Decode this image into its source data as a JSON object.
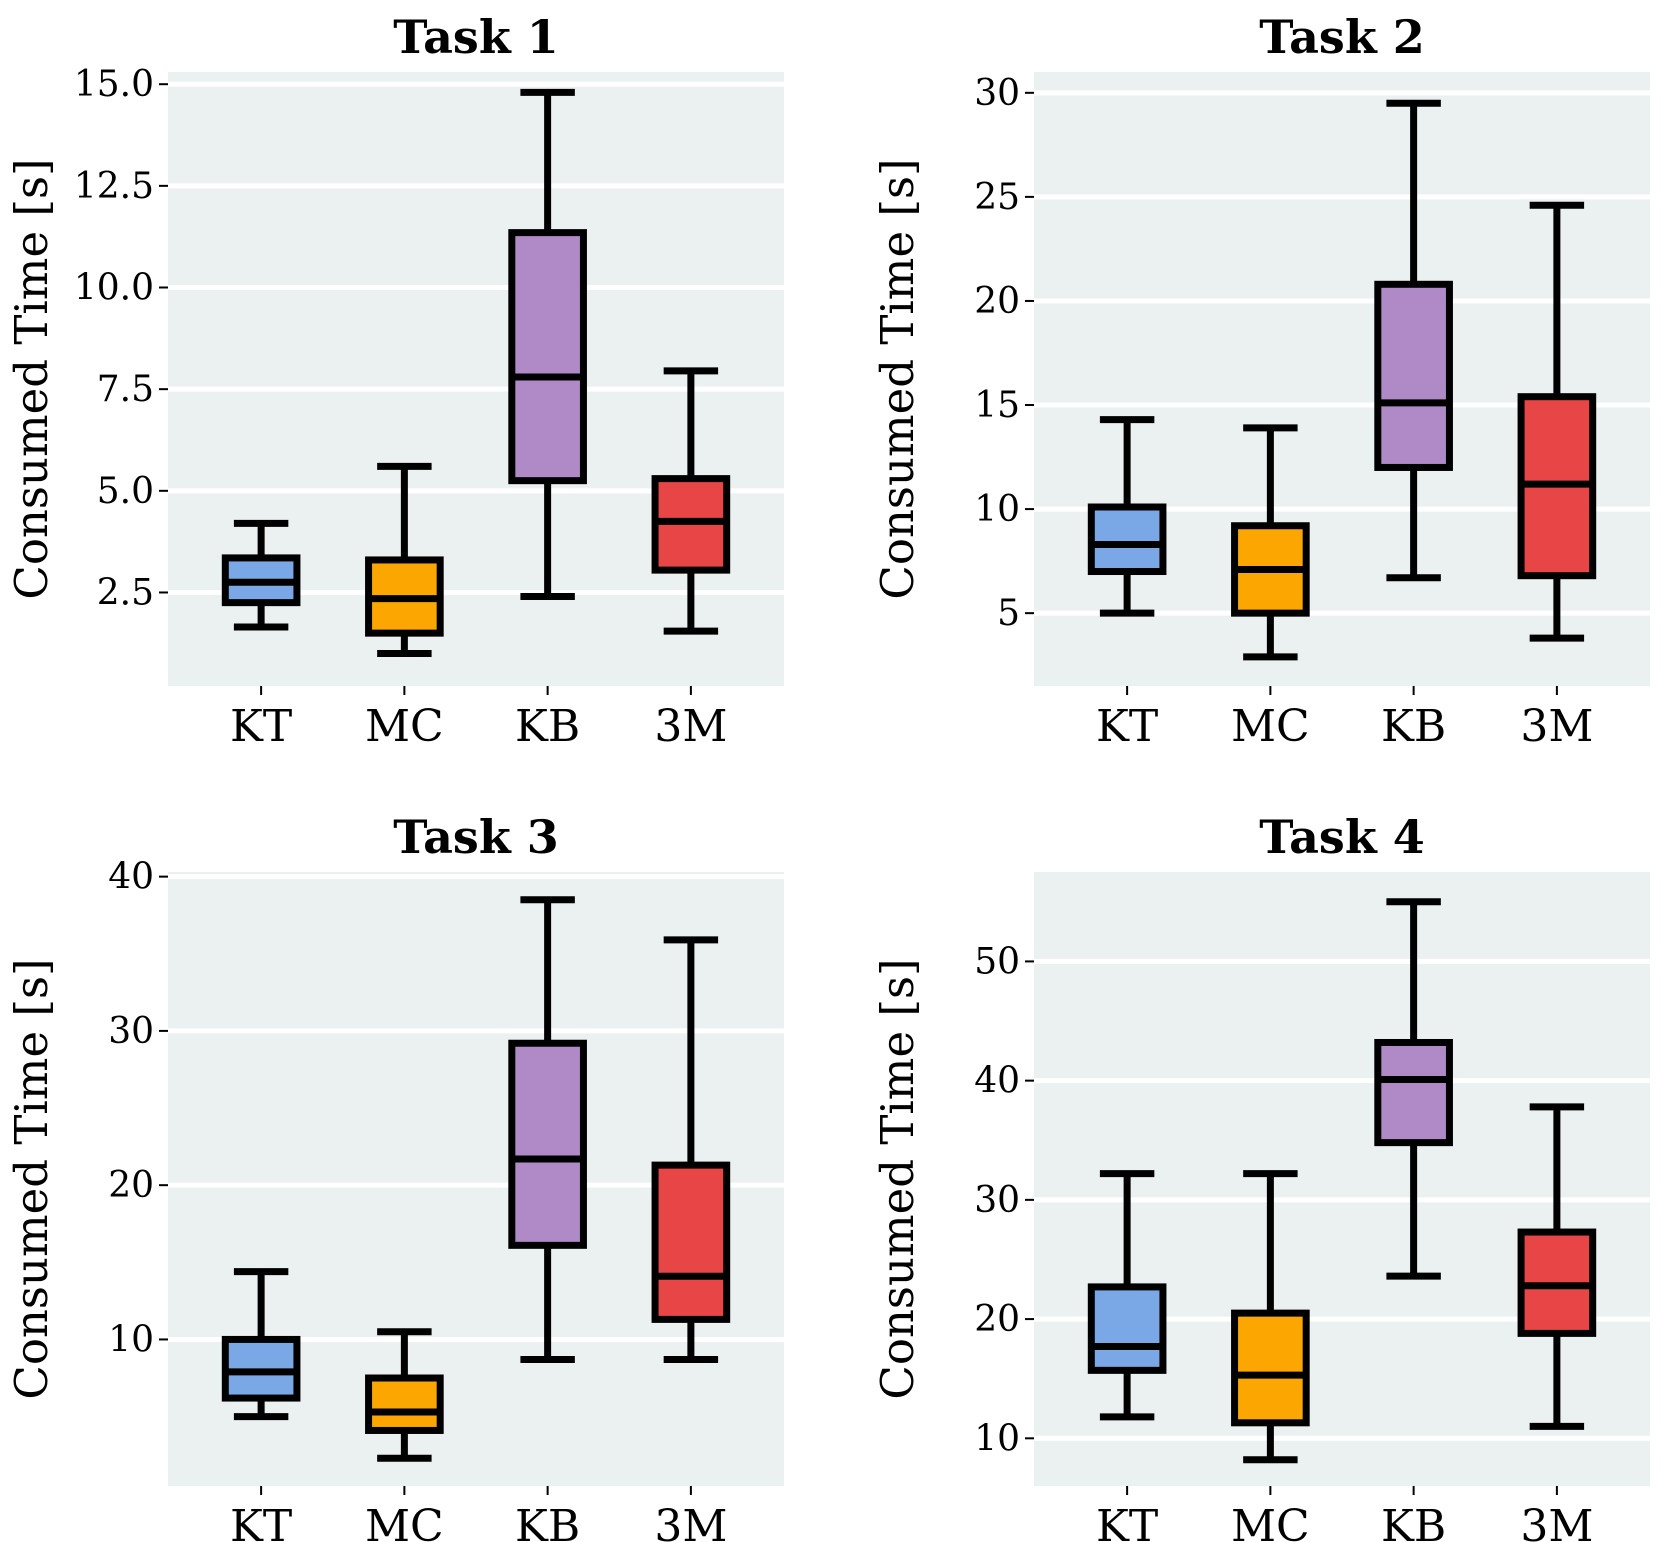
{
  "chart_data": [
    {
      "type": "box",
      "title": "Task 1",
      "ylabel": "Consumed Time [s]",
      "categories": [
        "KT",
        "MC",
        "KB",
        "3M"
      ],
      "ylim": [
        0.2,
        15.3
      ],
      "yticks": [
        2.5,
        5.0,
        7.5,
        10.0,
        12.5,
        15.0
      ],
      "ytick_labels": [
        "2.5",
        "5.0",
        "7.5",
        "10.0",
        "12.5",
        "15.0"
      ],
      "boxes": [
        {
          "whislo": 1.65,
          "q1": 2.25,
          "med": 2.75,
          "q3": 3.35,
          "whishi": 4.2
        },
        {
          "whislo": 1.0,
          "q1": 1.5,
          "med": 2.35,
          "q3": 3.3,
          "whishi": 5.6
        },
        {
          "whislo": 2.4,
          "q1": 5.25,
          "med": 7.8,
          "q3": 11.35,
          "whishi": 14.8
        },
        {
          "whislo": 1.55,
          "q1": 3.05,
          "med": 4.25,
          "q3": 5.3,
          "whishi": 7.95
        }
      ]
    },
    {
      "type": "box",
      "title": "Task 2",
      "ylabel": "Consumed Time [s]",
      "categories": [
        "KT",
        "MC",
        "KB",
        "3M"
      ],
      "ylim": [
        1.5,
        31.0
      ],
      "yticks": [
        5,
        10,
        15,
        20,
        25,
        30
      ],
      "ytick_labels": [
        "5",
        "10",
        "15",
        "20",
        "25",
        "30"
      ],
      "boxes": [
        {
          "whislo": 5.0,
          "q1": 7.0,
          "med": 8.3,
          "q3": 10.1,
          "whishi": 14.3
        },
        {
          "whislo": 2.9,
          "q1": 5.0,
          "med": 7.1,
          "q3": 9.2,
          "whishi": 13.9
        },
        {
          "whislo": 6.7,
          "q1": 12.0,
          "med": 15.1,
          "q3": 20.8,
          "whishi": 29.5
        },
        {
          "whislo": 3.8,
          "q1": 6.8,
          "med": 11.2,
          "q3": 15.4,
          "whishi": 24.6
        }
      ]
    },
    {
      "type": "box",
      "title": "Task 3",
      "ylabel": "Consumed Time [s]",
      "categories": [
        "KT",
        "MC",
        "KB",
        "3M"
      ],
      "ylim": [
        0.5,
        40.3
      ],
      "yticks": [
        10,
        20,
        30,
        40
      ],
      "ytick_labels": [
        "10",
        "20",
        "30",
        "40"
      ],
      "boxes": [
        {
          "whislo": 5.0,
          "q1": 6.2,
          "med": 7.9,
          "q3": 10.0,
          "whishi": 14.4
        },
        {
          "whislo": 2.3,
          "q1": 4.1,
          "med": 5.3,
          "q3": 7.5,
          "whishi": 10.5
        },
        {
          "whislo": 8.7,
          "q1": 16.1,
          "med": 21.7,
          "q3": 29.2,
          "whishi": 38.5
        },
        {
          "whislo": 8.7,
          "q1": 11.3,
          "med": 14.1,
          "q3": 21.3,
          "whishi": 35.9
        }
      ]
    },
    {
      "type": "box",
      "title": "Task 4",
      "ylabel": "Consumed Time [s]",
      "categories": [
        "KT",
        "MC",
        "KB",
        "3M"
      ],
      "ylim": [
        6.0,
        57.5
      ],
      "yticks": [
        10,
        20,
        30,
        40,
        50
      ],
      "ytick_labels": [
        "10",
        "20",
        "30",
        "40",
        "50"
      ],
      "boxes": [
        {
          "whislo": 11.8,
          "q1": 15.7,
          "med": 17.7,
          "q3": 22.7,
          "whishi": 32.2
        },
        {
          "whislo": 8.2,
          "q1": 11.3,
          "med": 15.3,
          "q3": 20.5,
          "whishi": 32.2
        },
        {
          "whislo": 23.6,
          "q1": 34.8,
          "med": 40.1,
          "q3": 43.2,
          "whishi": 55.0
        },
        {
          "whislo": 11.0,
          "q1": 18.8,
          "med": 22.8,
          "q3": 27.3,
          "whishi": 37.8
        }
      ]
    }
  ],
  "colors": {
    "box_fills": [
      "#7aa8e6",
      "#fba601",
      "#b08ac6",
      "#e84646"
    ],
    "plot_bg": "#ebf0f0",
    "grid": "#ffffff",
    "stroke": "#000000"
  }
}
